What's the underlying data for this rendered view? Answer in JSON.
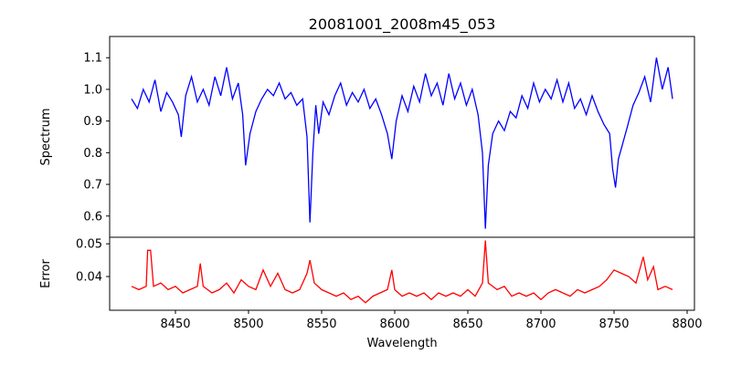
{
  "chart_data": [
    {
      "type": "line",
      "title": "20081001_2008m45_053",
      "xlabel": "",
      "ylabel": "Spectrum",
      "xlim": [
        8405,
        8805
      ],
      "ylim": [
        0.533,
        1.167
      ],
      "yticks": [
        0.6,
        0.7,
        0.8,
        0.9,
        1.0,
        1.1
      ],
      "ytick_labels": [
        "0.6",
        "0.7",
        "0.8",
        "0.9",
        "1.0",
        "1.1"
      ],
      "color": "#0000ff",
      "grid": false,
      "x": [
        8420,
        8424,
        8428,
        8432,
        8436,
        8440,
        8444,
        8448,
        8452,
        8454,
        8457,
        8461,
        8465,
        8469,
        8473,
        8477,
        8481,
        8485,
        8489,
        8493,
        8496,
        8498,
        8501,
        8505,
        8509,
        8513,
        8517,
        8521,
        8525,
        8529,
        8533,
        8537,
        8540,
        8542,
        8544,
        8546,
        8548,
        8551,
        8555,
        8559,
        8563,
        8567,
        8571,
        8575,
        8579,
        8583,
        8587,
        8591,
        8595,
        8598,
        8601,
        8605,
        8609,
        8613,
        8617,
        8621,
        8625,
        8629,
        8633,
        8637,
        8641,
        8645,
        8649,
        8653,
        8657,
        8660,
        8662,
        8664,
        8667,
        8671,
        8675,
        8679,
        8683,
        8687,
        8691,
        8695,
        8699,
        8703,
        8707,
        8711,
        8715,
        8719,
        8723,
        8727,
        8731,
        8735,
        8739,
        8743,
        8747,
        8749,
        8751,
        8753,
        8756,
        8759,
        8763,
        8767,
        8771,
        8775,
        8779,
        8783,
        8787,
        8790
      ],
      "y": [
        0.97,
        0.94,
        1.0,
        0.96,
        1.03,
        0.93,
        0.99,
        0.96,
        0.92,
        0.85,
        0.98,
        1.04,
        0.96,
        1.0,
        0.95,
        1.04,
        0.98,
        1.07,
        0.97,
        1.02,
        0.92,
        0.76,
        0.86,
        0.93,
        0.97,
        1.0,
        0.98,
        1.02,
        0.97,
        0.99,
        0.95,
        0.97,
        0.85,
        0.58,
        0.8,
        0.95,
        0.86,
        0.96,
        0.92,
        0.98,
        1.02,
        0.95,
        0.99,
        0.96,
        1.0,
        0.94,
        0.97,
        0.92,
        0.86,
        0.78,
        0.9,
        0.98,
        0.93,
        1.01,
        0.96,
        1.05,
        0.98,
        1.02,
        0.95,
        1.05,
        0.97,
        1.02,
        0.95,
        1.0,
        0.92,
        0.8,
        0.56,
        0.76,
        0.86,
        0.9,
        0.87,
        0.93,
        0.91,
        0.98,
        0.94,
        1.02,
        0.96,
        1.0,
        0.97,
        1.03,
        0.96,
        1.02,
        0.94,
        0.97,
        0.92,
        0.98,
        0.93,
        0.89,
        0.86,
        0.75,
        0.69,
        0.78,
        0.83,
        0.88,
        0.95,
        0.99,
        1.04,
        0.96,
        1.1,
        1.0,
        1.07,
        0.97
      ]
    },
    {
      "type": "line",
      "title": "",
      "xlabel": "Wavelength",
      "ylabel": "Error",
      "xlim": [
        8405,
        8805
      ],
      "ylim": [
        0.0297,
        0.052
      ],
      "yticks": [
        0.04,
        0.05
      ],
      "ytick_labels": [
        "0.04",
        "0.05"
      ],
      "xticks": [
        8450,
        8500,
        8550,
        8600,
        8650,
        8700,
        8750,
        8800
      ],
      "xtick_labels": [
        "8450",
        "8500",
        "8550",
        "8600",
        "8650",
        "8700",
        "8750",
        "8800"
      ],
      "color": "#ff0000",
      "grid": false,
      "x": [
        8420,
        8425,
        8430,
        8431,
        8433,
        8435,
        8440,
        8445,
        8450,
        8455,
        8460,
        8465,
        8467,
        8469,
        8475,
        8480,
        8485,
        8490,
        8495,
        8500,
        8505,
        8510,
        8515,
        8520,
        8525,
        8530,
        8535,
        8540,
        8542,
        8545,
        8550,
        8555,
        8560,
        8565,
        8570,
        8575,
        8580,
        8585,
        8590,
        8595,
        8598,
        8600,
        8605,
        8610,
        8615,
        8620,
        8625,
        8630,
        8635,
        8640,
        8645,
        8650,
        8655,
        8660,
        8662,
        8664,
        8670,
        8675,
        8680,
        8685,
        8690,
        8695,
        8700,
        8705,
        8710,
        8715,
        8720,
        8725,
        8730,
        8735,
        8740,
        8745,
        8750,
        8755,
        8760,
        8765,
        8770,
        8773,
        8777,
        8780,
        8785,
        8790
      ],
      "y": [
        0.037,
        0.036,
        0.037,
        0.048,
        0.048,
        0.037,
        0.038,
        0.036,
        0.037,
        0.035,
        0.036,
        0.037,
        0.044,
        0.037,
        0.035,
        0.036,
        0.038,
        0.035,
        0.039,
        0.037,
        0.036,
        0.042,
        0.037,
        0.041,
        0.036,
        0.035,
        0.036,
        0.041,
        0.045,
        0.038,
        0.036,
        0.035,
        0.034,
        0.035,
        0.033,
        0.034,
        0.032,
        0.034,
        0.035,
        0.036,
        0.042,
        0.036,
        0.034,
        0.035,
        0.034,
        0.035,
        0.033,
        0.035,
        0.034,
        0.035,
        0.034,
        0.036,
        0.034,
        0.038,
        0.051,
        0.038,
        0.036,
        0.037,
        0.034,
        0.035,
        0.034,
        0.035,
        0.033,
        0.035,
        0.036,
        0.035,
        0.034,
        0.036,
        0.035,
        0.036,
        0.037,
        0.039,
        0.042,
        0.041,
        0.04,
        0.038,
        0.046,
        0.039,
        0.043,
        0.036,
        0.037,
        0.036
      ]
    }
  ]
}
